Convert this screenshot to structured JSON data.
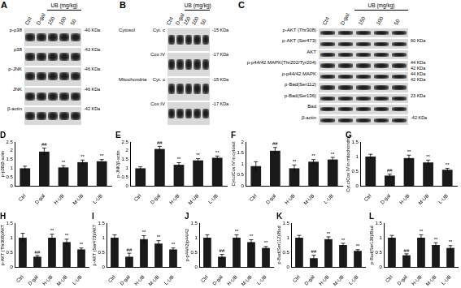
{
  "blots": [
    {
      "label": "A",
      "columns": [
        "Ctrl",
        "D-gal",
        "150",
        "100",
        "50"
      ],
      "group": {
        "text": "UB (mg/kg)",
        "from": 2,
        "to": 4
      },
      "rows": [
        {
          "name": "p-p38",
          "sizes": [
            "-40 KDa"
          ]
        },
        {
          "name": "p38",
          "sizes": [
            "-43 KDa"
          ]
        },
        {
          "name": "p-JNK",
          "sizes": [
            "-46 KDa"
          ]
        },
        {
          "name": "JNK",
          "sizes": [
            "-46 KDa"
          ]
        },
        {
          "name": "β-actin",
          "sizes": [
            "-42 KDa"
          ]
        }
      ]
    },
    {
      "label": "B",
      "columns": [
        "Ctrl",
        "D-gal",
        "150",
        "100",
        "50"
      ],
      "group": {
        "text": "UB (mg/kg)",
        "from": 2,
        "to": 4
      },
      "rows": [
        {
          "section": "Cytosol",
          "name": "Cyt. c",
          "sizes": [
            "-15 KDa"
          ]
        },
        {
          "name": "Cox IV",
          "sizes": [
            "-17 KDa"
          ]
        },
        {
          "section": "Mitochondria",
          "name": "Cyt. c",
          "sizes": [
            "-15 KDa"
          ]
        },
        {
          "name": "Cox IV",
          "sizes": [
            "-17 KDa"
          ]
        }
      ]
    },
    {
      "label": "C",
      "columns": [
        "Ctrl",
        "D-gal",
        "150",
        "100",
        "50"
      ],
      "group": {
        "text": "UB (mg/kg)",
        "from": 2,
        "to": 4
      },
      "rows": [
        {
          "name": "p-AKT (Thr308)"
        },
        {
          "name": "p-AKT (Ser473)",
          "sizes": [
            "60 KDa"
          ]
        },
        {
          "name": "AKT"
        },
        {
          "name": "p-p44/42 MAPK(Thr202/Tyr204)",
          "sizes": [
            "44 KDa",
            "42 KDa"
          ]
        },
        {
          "name": "p-p44/42 MAPK",
          "sizes": [
            "44 KDa",
            "42 KDa"
          ]
        },
        {
          "name": "p-Bad(Ser112)"
        },
        {
          "name": "p-Bad(Ser136)",
          "sizes": [
            "23 KDa"
          ]
        },
        {
          "name": "Bad"
        },
        {
          "name": "β-actin",
          "sizes": [
            "-42 KDa"
          ]
        }
      ]
    }
  ],
  "chart_data": [
    {
      "type": "bar",
      "title": "D",
      "y_label": "p-p38/β-actin",
      "categories": [
        "Ctrl",
        "D-gal",
        "H-UB",
        "M-UB",
        "L-UB"
      ],
      "values": [
        1.0,
        1.95,
        1.05,
        1.35,
        1.4
      ],
      "errors": [
        0.12,
        0.2,
        0.1,
        0.12,
        0.1
      ],
      "color": "#1a1a1a",
      "ylim": [
        0,
        2.5
      ],
      "yticks": [
        0,
        0.5,
        1,
        1.5,
        2,
        2.5
      ],
      "grid": false,
      "significance": [
        {
          "category": "D-gal",
          "text": "##"
        },
        {
          "category": "H-UB",
          "text": "**"
        },
        {
          "category": "M-UB",
          "text": "**"
        },
        {
          "category": "L-UB",
          "text": "**"
        }
      ]
    },
    {
      "type": "bar",
      "title": "E",
      "y_label": "p-JNK/β-actin",
      "categories": [
        "Ctrl",
        "D-gal",
        "H-UB",
        "M-UB",
        "L-UB"
      ],
      "values": [
        1.0,
        2.1,
        1.2,
        1.45,
        1.6
      ],
      "errors": [
        0.08,
        0.15,
        0.12,
        0.1,
        0.1
      ],
      "color": "#1a1a1a",
      "ylim": [
        0,
        2.5
      ],
      "yticks": [
        0,
        0.5,
        1,
        1.5,
        2,
        2.5
      ],
      "grid": false,
      "significance": [
        {
          "category": "D-gal",
          "text": "##"
        },
        {
          "category": "H-UB",
          "text": "**"
        },
        {
          "category": "M-UB",
          "text": "**"
        },
        {
          "category": "L-UB",
          "text": "**"
        }
      ]
    },
    {
      "type": "bar",
      "title": "F",
      "y_label": "Cyt.c/Cox IV in cytosol",
      "categories": [
        "Ctrl",
        "D-gal",
        "H-UB",
        "M-UB",
        "L-UB"
      ],
      "values": [
        0.9,
        1.6,
        0.8,
        1.1,
        1.2
      ],
      "errors": [
        0.2,
        0.15,
        0.15,
        0.1,
        0.1
      ],
      "color": "#1a1a1a",
      "ylim": [
        0,
        2
      ],
      "yticks": [
        0,
        0.5,
        1,
        1.5,
        2
      ],
      "grid": false,
      "significance": [
        {
          "category": "D-gal",
          "text": "##"
        },
        {
          "category": "H-UB",
          "text": "**"
        },
        {
          "category": "M-UB",
          "text": "**"
        },
        {
          "category": "L-UB",
          "text": "**"
        }
      ]
    },
    {
      "type": "bar",
      "title": "G",
      "y_label": "Cyt.c/Cox IV in mitochondria",
      "categories": [
        "Ctrl",
        "D-gal",
        "H-UB",
        "M-UB",
        "L-UB"
      ],
      "values": [
        1.0,
        0.35,
        0.95,
        0.8,
        0.55
      ],
      "errors": [
        0.08,
        0.05,
        0.1,
        0.08,
        0.05
      ],
      "color": "#1a1a1a",
      "ylim": [
        0,
        1.5
      ],
      "yticks": [
        0,
        0.5,
        1,
        1.5
      ],
      "grid": false,
      "significance": [
        {
          "category": "D-gal",
          "text": "##"
        },
        {
          "category": "H-UB",
          "text": "**"
        },
        {
          "category": "M-UB",
          "text": "**"
        },
        {
          "category": "L-UB",
          "text": "**"
        }
      ]
    },
    {
      "type": "bar",
      "title": "H",
      "y_label": "p-AKT (Thr308)/AKT",
      "categories": [
        "Ctrl",
        "D-gal",
        "H-UB",
        "M-UB",
        "L-UB"
      ],
      "values": [
        1.0,
        0.35,
        1.0,
        0.85,
        0.6
      ],
      "errors": [
        0.15,
        0.04,
        0.12,
        0.1,
        0.05
      ],
      "color": "#1a1a1a",
      "ylim": [
        0,
        1.5
      ],
      "yticks": [
        0,
        0.5,
        1,
        1.5
      ],
      "grid": false,
      "significance": [
        {
          "category": "D-gal",
          "text": "##"
        },
        {
          "category": "H-UB",
          "text": "**"
        },
        {
          "category": "M-UB",
          "text": "**"
        },
        {
          "category": "L-UB",
          "text": "**"
        }
      ]
    },
    {
      "type": "bar",
      "title": "I",
      "y_label": "p-AKT (Ser473)/AKT",
      "categories": [
        "Ctrl",
        "D-gal",
        "H-UB",
        "M-UB",
        "L-UB"
      ],
      "values": [
        1.0,
        0.35,
        0.95,
        0.8,
        0.6
      ],
      "errors": [
        0.1,
        0.12,
        0.12,
        0.1,
        0.05
      ],
      "color": "#1a1a1a",
      "ylim": [
        0,
        1.5
      ],
      "yticks": [
        0,
        0.5,
        1,
        1.5
      ],
      "grid": false,
      "significance": [
        {
          "category": "D-gal",
          "text": "##"
        },
        {
          "category": "H-UB",
          "text": "**"
        },
        {
          "category": "M-UB",
          "text": "**"
        },
        {
          "category": "L-UB",
          "text": "**"
        }
      ]
    },
    {
      "type": "bar",
      "title": "J",
      "y_label": "p-p44/42/p44/42",
      "categories": [
        "Ctrl",
        "D-gal",
        "H-UB",
        "M-UB",
        "L-UB"
      ],
      "values": [
        1.0,
        0.35,
        1.0,
        0.85,
        0.65
      ],
      "errors": [
        0.1,
        0.08,
        0.1,
        0.08,
        0.05
      ],
      "color": "#1a1a1a",
      "ylim": [
        0,
        1.5
      ],
      "yticks": [
        0,
        0.5,
        1,
        1.5
      ],
      "grid": false,
      "significance": [
        {
          "category": "D-gal",
          "text": "##"
        },
        {
          "category": "H-UB",
          "text": "**"
        },
        {
          "category": "M-UB",
          "text": "**"
        },
        {
          "category": "L-UB",
          "text": "**"
        }
      ]
    },
    {
      "type": "bar",
      "title": "K",
      "y_label": "p-Bad(Ser112)/Bad",
      "categories": [
        "Ctrl",
        "D-gal",
        "H-UB",
        "M-UB",
        "L-UB"
      ],
      "values": [
        1.0,
        0.3,
        0.95,
        0.75,
        0.55
      ],
      "errors": [
        0.08,
        0.1,
        0.08,
        0.06,
        0.04
      ],
      "color": "#1a1a1a",
      "ylim": [
        0,
        1.5
      ],
      "yticks": [
        0,
        0.5,
        1,
        1.5
      ],
      "grid": false,
      "significance": [
        {
          "category": "D-gal",
          "text": "##"
        },
        {
          "category": "H-UB",
          "text": "**"
        },
        {
          "category": "M-UB",
          "text": "**"
        },
        {
          "category": "L-UB",
          "text": "**"
        }
      ]
    },
    {
      "type": "bar",
      "title": "L",
      "y_label": "p-Bad(Ser136)/Bad",
      "categories": [
        "Ctrl",
        "D-gal",
        "H-UB",
        "M-UB",
        "L-UB"
      ],
      "values": [
        1.0,
        0.4,
        1.0,
        0.75,
        0.65
      ],
      "errors": [
        0.08,
        0.05,
        0.1,
        0.08,
        0.08
      ],
      "color": "#1a1a1a",
      "ylim": [
        0,
        1.5
      ],
      "yticks": [
        0,
        0.5,
        1,
        1.5
      ],
      "grid": false,
      "significance": [
        {
          "category": "D-gal",
          "text": "##"
        },
        {
          "category": "H-UB",
          "text": "**"
        },
        {
          "category": "M-UB",
          "text": "**"
        },
        {
          "category": "L-UB",
          "text": "**"
        }
      ]
    }
  ]
}
